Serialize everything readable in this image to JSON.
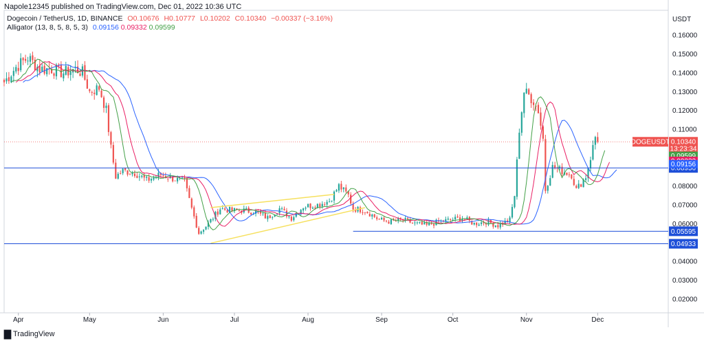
{
  "header": {
    "published": "Napole12345 published on TradingView.com, Dec 01, 2022 10:36 UTC",
    "symbol_line": "Dogecoin / TetherUS, 1D, BINANCE",
    "ohlc": {
      "o_label": "O",
      "o": "0.10676",
      "h_label": "H",
      "h": "0.10777",
      "l_label": "L",
      "l": "0.10202",
      "c_label": "C",
      "c": "0.10340",
      "change": "−0.00337 (−3.16%)"
    },
    "alligator_label": "Alligator (13, 8, 5, 8, 5, 3)",
    "alligator_values": [
      "0.09156",
      "0.09332",
      "0.09599"
    ]
  },
  "footer": {
    "brand": "TradingView"
  },
  "colors": {
    "up": "#26a69a",
    "down": "#ef5350",
    "jaw": "#2962ff",
    "teeth": "#e91e63",
    "lips": "#43a047",
    "hline": "#1e4fd8",
    "triangle": "#f6e05e"
  },
  "chart_data": {
    "type": "candlestick",
    "title": "Dogecoin / TetherUS, 1D, BINANCE",
    "currency": "USDT",
    "y_ticks": [
      "0.16000",
      "0.15000",
      "0.14000",
      "0.13000",
      "0.12000",
      "0.11000",
      "0.10000",
      "0.09000",
      "0.08000",
      "0.07000",
      "0.06000",
      "0.05000",
      "0.04000",
      "0.03000",
      "0.02000"
    ],
    "ylim": [
      0.011,
      0.17
    ],
    "x_ticks": [
      "Apr",
      "May",
      "Jun",
      "Jul",
      "Aug",
      "Sep",
      "Oct",
      "Nov",
      "Dec"
    ],
    "x_start": "2022-03-26",
    "close_path": [
      [
        "2022-03-26",
        0.135
      ],
      [
        "2022-03-31",
        0.143
      ],
      [
        "2022-04-05",
        0.148
      ],
      [
        "2022-04-10",
        0.142
      ],
      [
        "2022-04-15",
        0.142
      ],
      [
        "2022-04-20",
        0.14
      ],
      [
        "2022-04-25",
        0.142
      ],
      [
        "2022-04-28",
        0.14
      ],
      [
        "2022-05-01",
        0.13
      ],
      [
        "2022-05-05",
        0.132
      ],
      [
        "2022-05-08",
        0.12
      ],
      [
        "2022-05-10",
        0.1
      ],
      [
        "2022-05-12",
        0.085
      ],
      [
        "2022-05-15",
        0.088
      ],
      [
        "2022-05-20",
        0.087
      ],
      [
        "2022-05-25",
        0.083
      ],
      [
        "2022-05-31",
        0.086
      ],
      [
        "2022-06-05",
        0.084
      ],
      [
        "2022-06-10",
        0.082
      ],
      [
        "2022-06-13",
        0.068
      ],
      [
        "2022-06-16",
        0.055
      ],
      [
        "2022-06-20",
        0.06
      ],
      [
        "2022-06-25",
        0.068
      ],
      [
        "2022-06-30",
        0.067
      ],
      [
        "2022-07-05",
        0.067
      ],
      [
        "2022-07-10",
        0.066
      ],
      [
        "2022-07-15",
        0.063
      ],
      [
        "2022-07-20",
        0.068
      ],
      [
        "2022-07-25",
        0.063
      ],
      [
        "2022-07-30",
        0.069
      ],
      [
        "2022-08-05",
        0.07
      ],
      [
        "2022-08-10",
        0.072
      ],
      [
        "2022-08-14",
        0.08
      ],
      [
        "2022-08-18",
        0.075
      ],
      [
        "2022-08-20",
        0.068
      ],
      [
        "2022-08-25",
        0.067
      ],
      [
        "2022-08-31",
        0.062
      ],
      [
        "2022-09-05",
        0.061
      ],
      [
        "2022-09-10",
        0.062
      ],
      [
        "2022-09-15",
        0.06
      ],
      [
        "2022-09-20",
        0.059
      ],
      [
        "2022-09-25",
        0.061
      ],
      [
        "2022-09-30",
        0.062
      ],
      [
        "2022-10-05",
        0.063
      ],
      [
        "2022-10-10",
        0.06
      ],
      [
        "2022-10-15",
        0.061
      ],
      [
        "2022-10-20",
        0.059
      ],
      [
        "2022-10-25",
        0.062
      ],
      [
        "2022-10-27",
        0.075
      ],
      [
        "2022-10-29",
        0.11
      ],
      [
        "2022-10-31",
        0.13
      ],
      [
        "2022-11-02",
        0.128
      ],
      [
        "2022-11-04",
        0.125
      ],
      [
        "2022-11-06",
        0.12
      ],
      [
        "2022-11-08",
        0.105
      ],
      [
        "2022-11-09",
        0.078
      ],
      [
        "2022-11-12",
        0.09
      ],
      [
        "2022-11-16",
        0.088
      ],
      [
        "2022-11-20",
        0.086
      ],
      [
        "2022-11-22",
        0.078
      ],
      [
        "2022-11-26",
        0.085
      ],
      [
        "2022-11-28",
        0.095
      ],
      [
        "2022-11-30",
        0.106
      ],
      [
        "2022-12-01",
        0.1034
      ]
    ],
    "series": [
      {
        "name": "Alligator jaw (13, 8)",
        "last": 0.09156,
        "color": "#2962ff"
      },
      {
        "name": "Alligator teeth (8, 5)",
        "last": 0.09332,
        "color": "#e91e63"
      },
      {
        "name": "Alligator lips (5, 3)",
        "last": 0.09599,
        "color": "#43a047"
      }
    ],
    "horizontal_lines": [
      {
        "value": 0.08956,
        "label": "0.08956"
      },
      {
        "value": 0.05595,
        "label": "0.05595"
      },
      {
        "value": 0.04933,
        "label": "0.04933"
      }
    ],
    "triangle": {
      "upper": [
        [
          "2022-06-21",
          0.0685
        ],
        [
          "2022-08-12",
          0.0755
        ]
      ],
      "lower": [
        [
          "2022-06-21",
          0.0496
        ],
        [
          "2022-08-25",
          0.0685
        ]
      ]
    },
    "price_labels": [
      {
        "text": "DOGEUSDT",
        "value": "0.10340",
        "countdown": "13:23:34"
      },
      {
        "text": "0.09599"
      },
      {
        "text": "0.09332"
      },
      {
        "text": "0.09156"
      }
    ]
  }
}
